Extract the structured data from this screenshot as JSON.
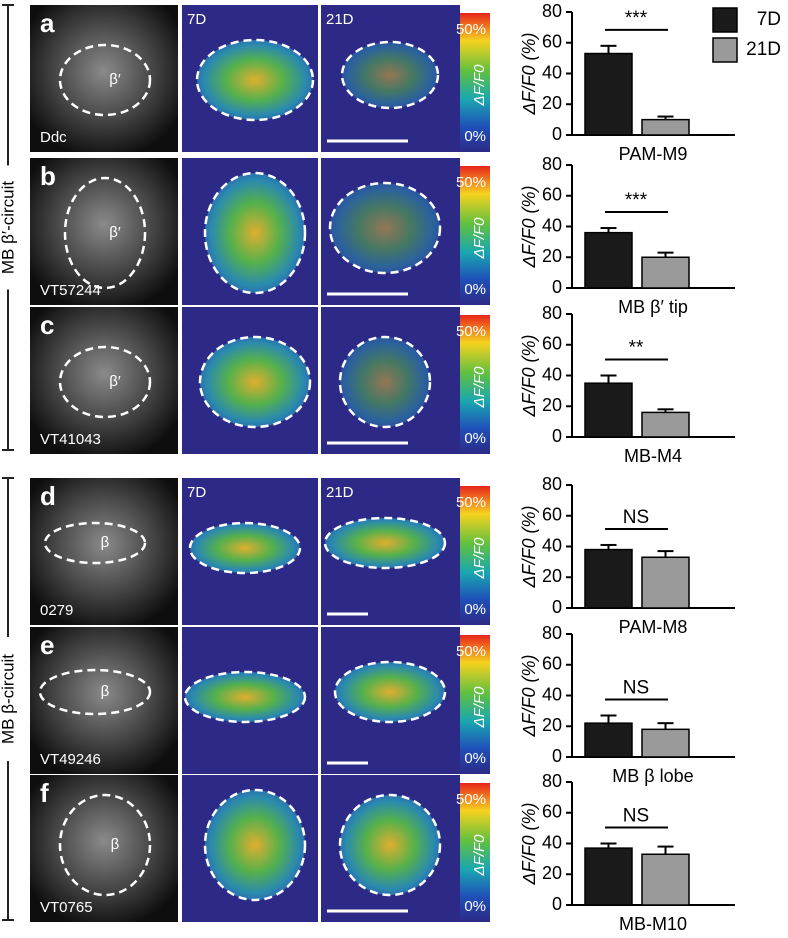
{
  "chart_data": [
    {
      "type": "bar",
      "x_label": "PAM-M9",
      "y_label": "ΔF/F0 (%)",
      "ylim": [
        0,
        80
      ],
      "yticks": [
        0,
        20,
        40,
        60,
        80
      ],
      "annotation": "***",
      "series": [
        {
          "name": "7D",
          "color": "#1a1a1a",
          "values": [
            53
          ],
          "errors": [
            5
          ]
        },
        {
          "name": "21D",
          "color": "#9a9a9a",
          "values": [
            10
          ],
          "errors": [
            2
          ]
        }
      ]
    },
    {
      "type": "bar",
      "x_label": "MB β′ tip",
      "y_label": "ΔF/F0 (%)",
      "ylim": [
        0,
        80
      ],
      "yticks": [
        0,
        20,
        40,
        60,
        80
      ],
      "annotation": "***",
      "series": [
        {
          "color": "#1a1a1a",
          "values": [
            36
          ],
          "errors": [
            3
          ]
        },
        {
          "color": "#9a9a9a",
          "values": [
            20
          ],
          "errors": [
            3
          ]
        }
      ]
    },
    {
      "type": "bar",
      "x_label": "MB-M4",
      "y_label": "ΔF/F0 (%)",
      "ylim": [
        0,
        80
      ],
      "yticks": [
        0,
        20,
        40,
        60,
        80
      ],
      "annotation": "**",
      "series": [
        {
          "color": "#1a1a1a",
          "values": [
            35
          ],
          "errors": [
            5
          ]
        },
        {
          "color": "#9a9a9a",
          "values": [
            16
          ],
          "errors": [
            2
          ]
        }
      ]
    },
    {
      "type": "bar",
      "x_label": "PAM-M8",
      "y_label": "ΔF/F0 (%)",
      "ylim": [
        0,
        80
      ],
      "yticks": [
        0,
        20,
        40,
        60,
        80
      ],
      "annotation": "NS",
      "series": [
        {
          "color": "#1a1a1a",
          "values": [
            38
          ],
          "errors": [
            3
          ]
        },
        {
          "color": "#9a9a9a",
          "values": [
            33
          ],
          "errors": [
            4
          ]
        }
      ]
    },
    {
      "type": "bar",
      "x_label": "MB β lobe",
      "y_label": "ΔF/F0 (%)",
      "ylim": [
        0,
        80
      ],
      "yticks": [
        0,
        20,
        40,
        60,
        80
      ],
      "annotation": "NS",
      "series": [
        {
          "color": "#1a1a1a",
          "values": [
            22
          ],
          "errors": [
            5
          ]
        },
        {
          "color": "#9a9a9a",
          "values": [
            18
          ],
          "errors": [
            4
          ]
        }
      ]
    },
    {
      "type": "bar",
      "x_label": "MB-M10",
      "y_label": "ΔF/F0 (%)",
      "ylim": [
        0,
        80
      ],
      "yticks": [
        0,
        20,
        40,
        60,
        80
      ],
      "annotation": "NS",
      "series": [
        {
          "color": "#1a1a1a",
          "values": [
            37
          ],
          "errors": [
            3
          ]
        },
        {
          "color": "#9a9a9a",
          "values": [
            33
          ],
          "errors": [
            5
          ]
        }
      ]
    }
  ],
  "panels": [
    {
      "letter": "a",
      "line": "Ddc",
      "region": "β′",
      "conditions": [
        "7D",
        "21D"
      ],
      "scale_max": "50%",
      "scale_min": "0%",
      "scale_label": "ΔF/F0"
    },
    {
      "letter": "b",
      "line": "VT57244",
      "region": "β′",
      "scale_max": "50%",
      "scale_min": "0%",
      "scale_label": "ΔF/F0"
    },
    {
      "letter": "c",
      "line": "VT41043",
      "region": "β′",
      "scale_max": "50%",
      "scale_min": "0%",
      "scale_label": "ΔF/F0"
    },
    {
      "letter": "d",
      "line": "0279",
      "region": "β",
      "conditions": [
        "7D",
        "21D"
      ],
      "scale_max": "50%",
      "scale_min": "0%",
      "scale_label": "ΔF/F0"
    },
    {
      "letter": "e",
      "line": "VT49246",
      "region": "β",
      "scale_max": "50%",
      "scale_min": "0%",
      "scale_label": "ΔF/F0"
    },
    {
      "letter": "f",
      "line": "VT0765",
      "region": "β",
      "scale_max": "50%",
      "scale_min": "0%",
      "scale_label": "ΔF/F0"
    }
  ],
  "groups": [
    "MB β′-circuit",
    "MB β-circuit"
  ]
}
